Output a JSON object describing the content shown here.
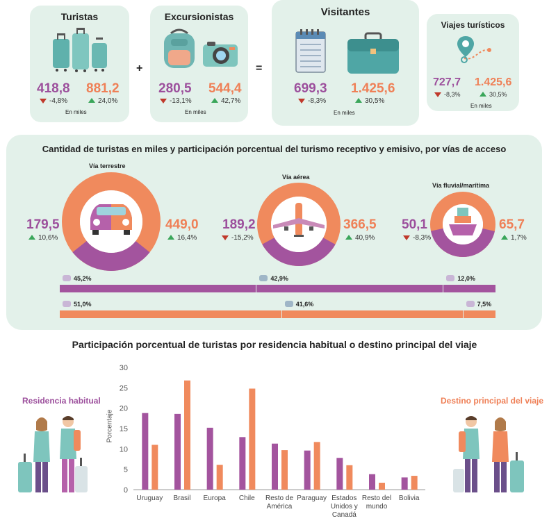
{
  "top": {
    "turistas": {
      "title": "Turistas",
      "receptivo": "418,8",
      "emisivo": "881,2",
      "receptivo_change": "-4,8%",
      "emisivo_change": "24,0%",
      "unit": "En miles"
    },
    "excursionistas": {
      "title": "Excursionistas",
      "receptivo": "280,5",
      "emisivo": "544,4",
      "receptivo_change": "-13,1%",
      "emisivo_change": "42,7%",
      "unit": "En miles"
    },
    "visitantes": {
      "title": "Visitantes",
      "receptivo": "699,3",
      "emisivo": "1.425,6",
      "receptivo_change": "-8,3%",
      "emisivo_change": "30,5%",
      "unit": "En miles"
    },
    "viajes": {
      "title": "Viajes turísticos",
      "receptivo": "727,7",
      "emisivo": "1.425,6",
      "receptivo_change": "-8,3%",
      "emisivo_change": "30,5%",
      "unit": "En miles"
    },
    "plus": "+",
    "equals": "=",
    "icons": [
      "suitcases-icon",
      "backpack-icon",
      "camera-icon",
      "agenda-icon",
      "briefcase-icon",
      "route-pin-icon"
    ]
  },
  "vias": {
    "title": "Cantidad de turistas en miles y participación porcentual del turismo receptivo y emisivo, por vías de acceso",
    "terrestre": {
      "label": "Vía terrestre",
      "receptivo": "179,5",
      "receptivo_change": "10,6%",
      "emisivo": "449,0",
      "emisivo_change": "16,4%",
      "receptivo_share": 0.286,
      "icon": "car-icon"
    },
    "aerea": {
      "label": "Vía aérea",
      "receptivo": "189,2",
      "receptivo_change": "-15,2%",
      "emisivo": "366,5",
      "emisivo_change": "40,9%",
      "receptivo_share": 0.34,
      "icon": "airplane-icon"
    },
    "fluvial": {
      "label": "Vía fluvial/marítima",
      "receptivo": "50,1",
      "receptivo_change": "-8,3%",
      "emisivo": "65,7",
      "emisivo_change": "1,7%",
      "receptivo_share": 0.433,
      "icon": "ship-icon"
    },
    "bar_receptivo": [
      {
        "label": "45,2%",
        "value": 45.2
      },
      {
        "label": "42,9%",
        "value": 42.9
      },
      {
        "label": "12,0%",
        "value": 12.0
      }
    ],
    "bar_emisivo": [
      {
        "label": "51,0%",
        "value": 51.0
      },
      {
        "label": "41,6%",
        "value": 41.6
      },
      {
        "label": "7,5%",
        "value": 7.5
      }
    ],
    "colors": {
      "receptivo": "#a3549e",
      "emisivo": "#f08a5d"
    }
  },
  "residencia": {
    "title": "Participación porcentual de turistas por residencia habitual o destino principal del viaje",
    "left_label": "Residencia habitual",
    "right_label": "Destino principal del viaje"
  },
  "chart_data": {
    "type": "bar",
    "categories": [
      "Uruguay",
      "Brasil",
      "Europa",
      "Chile",
      "Resto de América",
      "Paraguay",
      "Estados Unidos y Canadá",
      "Resto del mundo",
      "Bolivia"
    ],
    "category_lines": [
      [
        "Uruguay"
      ],
      [
        "Brasil"
      ],
      [
        "Europa"
      ],
      [
        "Chile"
      ],
      [
        "Resto de",
        "América"
      ],
      [
        "Paraguay"
      ],
      [
        "Estados",
        "Unidos y",
        "Canadá"
      ],
      [
        "Resto del",
        "mundo"
      ],
      [
        "Bolivia"
      ]
    ],
    "series": [
      {
        "name": "Residencia habitual",
        "color": "#a3549e",
        "values": [
          18.8,
          18.6,
          15.2,
          12.9,
          11.3,
          9.6,
          7.8,
          3.8,
          3.0
        ]
      },
      {
        "name": "Destino principal del viaje",
        "color": "#f08a5d",
        "values": [
          11.0,
          26.8,
          6.1,
          24.8,
          9.7,
          11.7,
          6.0,
          1.7,
          3.4
        ]
      }
    ],
    "ylabel": "Porcentaje",
    "ylim": [
      0,
      30
    ],
    "yticks": [
      0,
      5,
      10,
      15,
      20,
      25,
      30
    ],
    "grid": false
  }
}
